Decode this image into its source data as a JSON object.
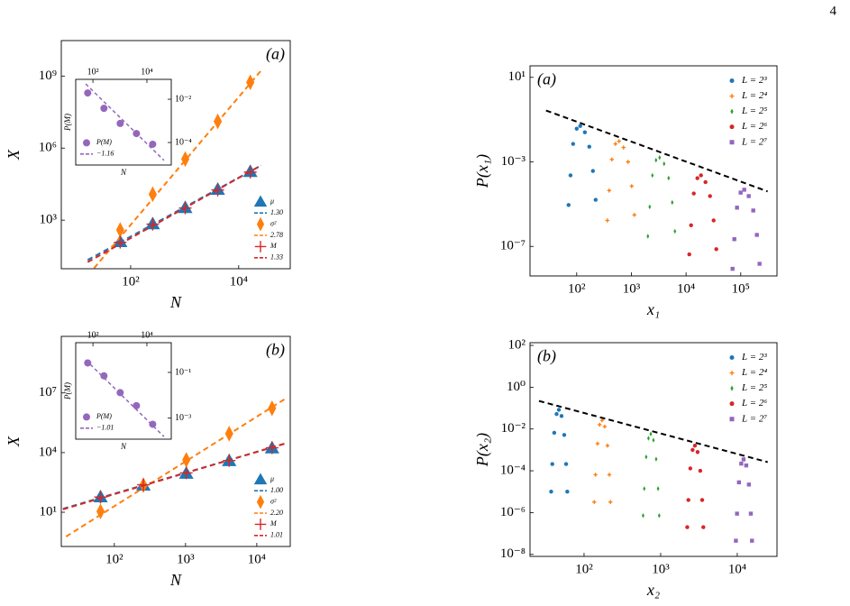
{
  "page_number": "4",
  "chart_data": [
    {
      "type": "scatter",
      "panel_label": "(a)",
      "panel_label_position": "upper right",
      "xlabel": "N",
      "ylabel": "X",
      "xscale": "log",
      "yscale": "log",
      "xlim": [
        5.2,
        90000
      ],
      "ylim": [
        9.5,
        30000000000
      ],
      "xticks": [
        {
          "value": 100,
          "label": "10²"
        },
        {
          "value": 10000,
          "label": "10⁴"
        }
      ],
      "yticks": [
        {
          "value": 1000,
          "label": "10³"
        },
        {
          "value": 1000000,
          "label": "10⁶"
        },
        {
          "value": 1000000000,
          "label": "10⁹"
        }
      ],
      "legend": "lower right",
      "series": [
        {
          "name": "μ",
          "marker": "triangle",
          "color": "#1f77b4",
          "x": [
            64,
            256,
            1024,
            4096,
            16384
          ],
          "values": [
            126,
            700,
            3300,
            19000,
            105000
          ]
        },
        {
          "name": "1.30",
          "style": "dashed",
          "color": "#1f77b4",
          "x": [
            16,
            26000
          ],
          "values": [
            22,
            190000
          ]
        },
        {
          "name": "σ²",
          "marker": "diamond",
          "color": "#ff7f0e",
          "x": [
            64,
            256,
            1024,
            4096,
            16384
          ],
          "values": [
            390,
            12000,
            350000,
            13000000,
            550000000
          ]
        },
        {
          "name": "2.78",
          "style": "dashed",
          "color": "#ff7f0e",
          "x": [
            21,
            26000
          ],
          "values": [
            10,
            1700000000
          ]
        },
        {
          "name": "M",
          "marker": "plus",
          "color": "#d62728",
          "x": [
            64,
            256,
            1024,
            4096,
            16384
          ],
          "values": [
            120,
            680,
            3200,
            18000,
            100000
          ]
        },
        {
          "name": "1.33",
          "style": "dashed",
          "color": "#d62728",
          "x": [
            16,
            26000
          ],
          "values": [
            18,
            190000
          ]
        }
      ]
    },
    {
      "type": "scatter",
      "xlabel": "N",
      "ylabel": "P(M)",
      "xscale": "log",
      "yscale": "log",
      "xaxis_position": "top",
      "yaxis_position": "right",
      "xlim": [
        23,
        80000
      ],
      "ylim": [
        9.1e-06,
        0.083
      ],
      "xticks": [
        {
          "value": 100,
          "label": "10²"
        },
        {
          "value": 10000,
          "label": "10⁴"
        }
      ],
      "yticks": [
        {
          "value": 0.01,
          "label": "10⁻²"
        },
        {
          "value": 0.0001,
          "label": "10⁻⁴"
        }
      ],
      "legend": "lower left",
      "series": [
        {
          "name": "P(M)",
          "marker": "circle",
          "color": "#9467bd",
          "x": [
            64,
            256,
            1024,
            4096,
            16384
          ],
          "values": [
            0.0195,
            0.0038,
            0.00076,
            0.00026,
            8.3e-05
          ]
        },
        {
          "name": "−1.16",
          "style": "dashed",
          "color": "#9467bd",
          "x": [
            54,
            43000
          ],
          "values": [
            0.051,
            1.5e-05
          ]
        }
      ]
    },
    {
      "type": "scatter",
      "panel_label": "(b)",
      "panel_label_position": "upper right",
      "xlabel": "N",
      "ylabel": "X",
      "xscale": "log",
      "yscale": "log",
      "xlim": [
        18,
        29500
      ],
      "ylim": [
        0.19,
        7000000000
      ],
      "xticks": [
        {
          "value": 100,
          "label": "10²"
        },
        {
          "value": 1000,
          "label": "10³"
        },
        {
          "value": 10000,
          "label": "10⁴"
        }
      ],
      "yticks": [
        {
          "value": 10,
          "label": "10¹"
        },
        {
          "value": 10000,
          "label": "10⁴"
        },
        {
          "value": 10000000,
          "label": "10⁷"
        }
      ],
      "legend": "lower right",
      "series": [
        {
          "name": "μ",
          "marker": "triangle",
          "color": "#1f77b4",
          "x": [
            64,
            256,
            1024,
            4096,
            16384
          ],
          "values": [
            59,
            230,
            900,
            3900,
            17000
          ]
        },
        {
          "name": "1.00",
          "style": "dashed",
          "color": "#1f77b4",
          "x": [
            19,
            24500
          ],
          "values": [
            15,
            28000
          ]
        },
        {
          "name": "σ²",
          "marker": "diamond",
          "color": "#ff7f0e",
          "x": [
            64,
            256,
            1024,
            4096,
            16384
          ],
          "values": [
            11,
            230,
            4300,
            90000,
            1700000
          ]
        },
        {
          "name": "2.20",
          "style": "dashed",
          "color": "#ff7f0e",
          "x": [
            21,
            24500
          ],
          "values": [
            0.6,
            4800000
          ]
        },
        {
          "name": "M",
          "marker": "plus",
          "color": "#d62728",
          "x": [
            64,
            256,
            1024,
            4096,
            16384
          ],
          "values": [
            58,
            240,
            950,
            4000,
            17500
          ]
        },
        {
          "name": "1.01",
          "style": "dashed",
          "color": "#d62728",
          "x": [
            19,
            24500
          ],
          "values": [
            14,
            28000
          ]
        }
      ]
    },
    {
      "type": "scatter",
      "xlabel": "N",
      "ylabel": "P(M)",
      "xscale": "log",
      "yscale": "log",
      "xaxis_position": "top",
      "yaxis_position": "right",
      "xlim": [
        23,
        80000
      ],
      "ylim": [
        0.00012,
        2.0
      ],
      "xticks": [
        {
          "value": 100,
          "label": "10²"
        },
        {
          "value": 10000,
          "label": "10⁴"
        }
      ],
      "yticks": [
        {
          "value": 0.1,
          "label": "10⁻¹"
        },
        {
          "value": 0.001,
          "label": "10⁻³"
        }
      ],
      "legend": "lower left",
      "series": [
        {
          "name": "P(M)",
          "marker": "circle",
          "color": "#9467bd",
          "x": [
            64,
            256,
            1024,
            4096,
            16384
          ],
          "values": [
            0.26,
            0.071,
            0.013,
            0.0035,
            0.00054
          ]
        },
        {
          "name": "−1.01",
          "style": "dashed",
          "color": "#9467bd",
          "x": [
            54,
            43000
          ],
          "values": [
            0.35,
            0.000155
          ]
        }
      ]
    },
    {
      "type": "scatter",
      "panel_label": "(a)",
      "panel_label_position": "upper left",
      "xlabel": "x₁",
      "ylabel": "P(x₁)",
      "xscale": "log",
      "yscale": "log",
      "xlim": [
        14,
        460000
      ],
      "ylim": [
        4e-09,
        35
      ],
      "xticks": [
        {
          "value": 100,
          "label": "10²"
        },
        {
          "value": 1000,
          "label": "10³"
        },
        {
          "value": 10000,
          "label": "10⁴"
        },
        {
          "value": 100000,
          "label": "10⁵"
        }
      ],
      "yticks": [
        {
          "value": 10,
          "label": "10¹"
        },
        {
          "value": 0.001,
          "label": "10⁻³"
        },
        {
          "value": 1e-07,
          "label": "10⁻⁷"
        }
      ],
      "legend": "upper right",
      "series": [
        {
          "name": "L = 2³",
          "marker": "circle",
          "color": "#1f77b4",
          "x": [
            71,
            77,
            86,
            100,
            116,
            141,
            170,
            198,
            222
          ],
          "values": [
            9.1e-06,
            0.00023,
            0.0071,
            0.037,
            0.05,
            0.025,
            0.0052,
            0.00037,
            1.6e-05
          ]
        },
        {
          "name": "L = 2⁴",
          "marker": "plus",
          "color": "#ff7f0e",
          "x": [
            363,
            392,
            439,
            511,
            594,
            718,
            869,
            1012,
            1132
          ],
          "values": [
            1.7e-06,
            4.4e-05,
            0.0013,
            0.0071,
            0.0095,
            0.0048,
            0.001,
            7.1e-05,
            3.1e-06
          ]
        },
        {
          "name": "L = 2⁵",
          "marker": "diamond",
          "color": "#2ca02c",
          "x": [
            2004,
            2163,
            2421,
            2818,
            3281,
            3963,
            4797,
            5585,
            6252
          ],
          "values": [
            3e-07,
            7.4e-06,
            0.00023,
            0.0012,
            0.0016,
            0.00081,
            0.00017,
            1.2e-05,
            5.2e-07
          ]
        },
        {
          "name": "L = 2⁶",
          "marker": "circle",
          "color": "#d62728",
          "x": [
            11460,
            12360,
            13840,
            16110,
            18750,
            22650,
            27420,
            31920,
            35730
          ],
          "values": [
            4.2e-08,
            1e-06,
            3.2e-05,
            0.00017,
            0.00023,
            0.00011,
            2.4e-05,
            1.7e-06,
            7.4e-08
          ]
        },
        {
          "name": "L = 2⁷",
          "marker": "square",
          "color": "#9467bd",
          "x": [
            70790,
            76380,
            85510,
            99540,
            115900,
            140000,
            169400,
            197200,
            220800
          ],
          "values": [
            8.7e-09,
            2.2e-07,
            6.8e-06,
            3.5e-05,
            4.8e-05,
            2.4e-05,
            5e-06,
            3.5e-07,
            1.5e-08
          ]
        },
        {
          "style": "dashed",
          "color": "#000000",
          "x": [
            27.5,
            310000
          ],
          "values": [
            0.27,
            4e-05
          ]
        }
      ]
    },
    {
      "type": "scatter",
      "panel_label": "(b)",
      "panel_label_position": "upper left",
      "xlabel": "x₂",
      "ylabel": "P(x₂)",
      "xscale": "log",
      "yscale": "log",
      "xlim": [
        19.7,
        33000
      ],
      "ylim": [
        8e-09,
        135
      ],
      "xticks": [
        {
          "value": 100,
          "label": "10²"
        },
        {
          "value": 1000,
          "label": "10³"
        },
        {
          "value": 10000,
          "label": "10⁴"
        }
      ],
      "yticks": [
        {
          "value": 100,
          "label": "10²"
        },
        {
          "value": 1,
          "label": "10⁰"
        },
        {
          "value": 0.01,
          "label": "10⁻²"
        },
        {
          "value": 0.0001,
          "label": "10⁻⁴"
        },
        {
          "value": 1e-06,
          "label": "10⁻⁶"
        },
        {
          "value": 1e-08,
          "label": "10⁻⁸"
        }
      ],
      "legend": "upper right",
      "series": [
        {
          "name": "L = 2³",
          "marker": "circle",
          "color": "#1f77b4",
          "x": [
            37.2,
            38.5,
            40.8,
            43.8,
            46.9,
            50.8,
            55.1,
            58.3,
            60.4
          ],
          "values": [
            1e-05,
            0.00021,
            0.0066,
            0.052,
            0.083,
            0.042,
            0.0052,
            0.00021,
            1e-05
          ]
        },
        {
          "name": "L = 2⁴",
          "marker": "plus",
          "color": "#ff7f0e",
          "x": [
            136,
            141,
            150,
            160,
            172,
            186,
            202,
            214,
            221
          ],
          "values": [
            3.2e-06,
            6.5e-05,
            0.002,
            0.016,
            0.026,
            0.013,
            0.0016,
            6.5e-05,
            3.2e-06
          ]
        },
        {
          "name": "L = 2⁵",
          "marker": "diamond",
          "color": "#2ca02c",
          "x": [
            590,
            611,
            647,
            693,
            743,
            805,
            873,
            925,
            957
          ],
          "values": [
            7.2e-07,
            1.4e-05,
            0.00046,
            0.0036,
            0.0058,
            0.0029,
            0.00036,
            1.4e-05,
            7.2e-07
          ]
        },
        {
          "name": "L = 2⁶",
          "marker": "circle",
          "color": "#d62728",
          "x": [
            2223,
            2301,
            2438,
            2612,
            2799,
            3034,
            3289,
            3483,
            3606
          ],
          "values": [
            2e-07,
            4e-06,
            0.00013,
            0.001,
            0.0016,
            0.00079,
            0.0001,
            4e-06,
            2e-07
          ]
        },
        {
          "name": "L = 2⁷",
          "marker": "square",
          "color": "#9467bd",
          "x": [
            9594,
            9931,
            10520,
            11270,
            12080,
            13090,
            14190,
            15030,
            15560
          ],
          "values": [
            4.5e-08,
            8.9e-07,
            2.8e-05,
            0.00022,
            0.00035,
            0.00018,
            2.2e-05,
            8.9e-07,
            4.5e-08
          ]
        },
        {
          "style": "dashed",
          "color": "#000000",
          "x": [
            25.8,
            25000
          ],
          "values": [
            0.22,
            0.00026
          ]
        }
      ]
    }
  ]
}
